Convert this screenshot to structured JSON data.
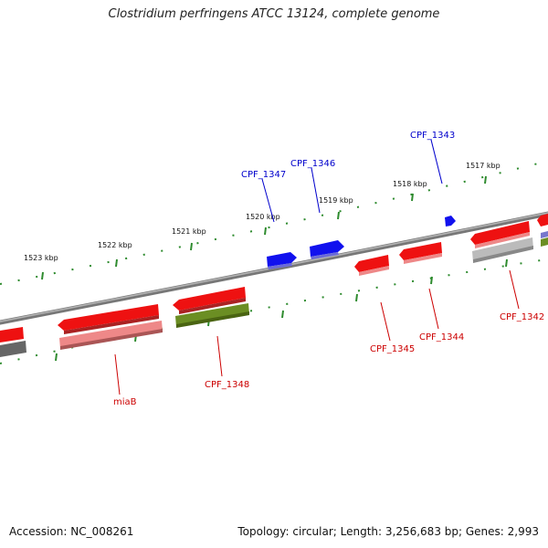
{
  "title": "Clostridium perfringens ATCC 13124, complete genome",
  "footer": {
    "accession": "Accession: NC_008261",
    "summary": "Topology: circular; Length: 3,256,683 bp; Genes: 2,993"
  },
  "kbp_ticks": [
    "1517 kbp",
    "1518 kbp",
    "1519 kbp",
    "1520 kbp",
    "1521 kbp",
    "1522 kbp",
    "1523 kbp"
  ],
  "gene_labels": {
    "forward": [
      "CPF_1343",
      "CPF_1346",
      "CPF_1347"
    ],
    "reverse": [
      "CPF_1342",
      "CPF_1344",
      "CPF_1345",
      "CPF_1348",
      "miaB"
    ]
  },
  "colors": {
    "backbone": "#8a8a8a",
    "tick": "#2e8b2e",
    "forward_label": "#0000cc",
    "reverse_label": "#cc0000",
    "cds_red": "#ee1111",
    "cds_red_light": "#ee8888",
    "cds_blue": "#1111ee",
    "olive": "#6b8e23",
    "grey": "#aaaaaa"
  }
}
